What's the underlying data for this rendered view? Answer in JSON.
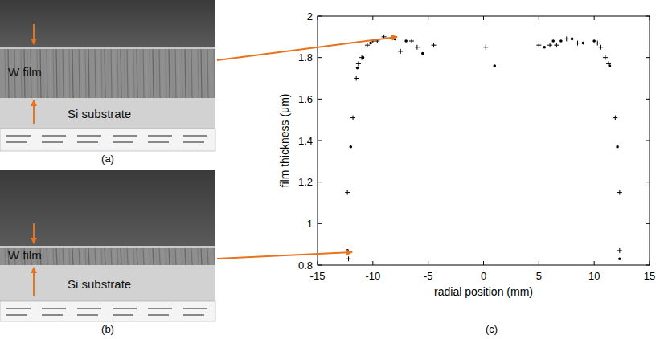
{
  "panels": [
    {
      "label": "(a)",
      "film": "W film",
      "substrate": "Si substrate"
    },
    {
      "label": "(b)",
      "film": "W film",
      "substrate": "Si substrate"
    }
  ],
  "chart_data": {
    "type": "scatter",
    "title": "(c)",
    "xlabel": "radial position (mm)",
    "ylabel": "film thickness (μm)",
    "xlim": [
      -15,
      15
    ],
    "xticks": [
      -15,
      -10,
      -5,
      0,
      5,
      10,
      15
    ],
    "ylim": [
      0.8,
      2
    ],
    "yticks": [
      0.8,
      1,
      1.2,
      1.4,
      1.6,
      1.8,
      2
    ],
    "grid": false,
    "series": [
      {
        "marker": "point",
        "color": "#000000",
        "x": [
          -12.3,
          -12.0,
          -11.4,
          -10.9,
          -10.2,
          -8.0,
          -7.0,
          -5.5,
          1.0,
          5.5,
          6.3,
          7.0,
          8.0,
          9.0,
          10.0,
          11.4,
          12.1,
          12.3
        ],
        "values": [
          0.87,
          1.37,
          1.75,
          1.8,
          1.87,
          1.89,
          1.88,
          1.82,
          1.76,
          1.85,
          1.88,
          1.88,
          1.89,
          1.87,
          1.88,
          1.76,
          1.37,
          0.83
        ]
      },
      {
        "marker": "plus",
        "color": "#000000",
        "x": [
          -12.2,
          -12.3,
          -11.8,
          -11.5,
          -11.3,
          -11.0,
          -10.5,
          -10.0,
          -9.6,
          -9.0,
          -7.5,
          -6.5,
          -6.0,
          -4.5,
          0.2,
          5.0,
          6.0,
          6.6,
          7.5,
          8.5,
          10.3,
          10.6,
          11.0,
          11.3,
          11.9,
          12.3,
          12.3
        ],
        "values": [
          0.83,
          1.15,
          1.51,
          1.7,
          1.77,
          1.8,
          1.86,
          1.88,
          1.88,
          1.9,
          1.83,
          1.88,
          1.85,
          1.86,
          1.85,
          1.86,
          1.86,
          1.86,
          1.89,
          1.87,
          1.87,
          1.85,
          1.8,
          1.77,
          1.51,
          1.15,
          0.87
        ]
      }
    ]
  }
}
